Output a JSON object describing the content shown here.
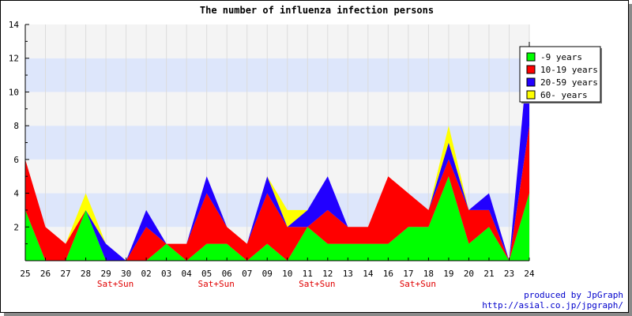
{
  "chart_data": {
    "type": "area",
    "stacked": true,
    "title": "The number of influenza infection persons",
    "categories": [
      "25",
      "26",
      "27",
      "28",
      "29",
      "30",
      "02",
      "03",
      "04",
      "05",
      "06",
      "07",
      "09",
      "10",
      "11",
      "12",
      "13",
      "14",
      "16",
      "17",
      "18",
      "19",
      "20",
      "21",
      "23",
      "24"
    ],
    "weekend_marks": [
      {
        "category": "29",
        "label": "Sat+Sun"
      },
      {
        "category": "05",
        "label": "Sat+Sun"
      },
      {
        "category": "11",
        "label": "Sat+Sun"
      },
      {
        "category": "17",
        "label": "Sat+Sun"
      }
    ],
    "ylim": [
      0,
      14
    ],
    "yticks": [
      2,
      4,
      6,
      8,
      10,
      12,
      14
    ],
    "series": [
      {
        "name": "-9 years",
        "color": "#00ff00",
        "values": [
          3,
          0,
          0,
          3,
          0,
          0,
          0,
          1,
          0,
          1,
          1,
          0,
          1,
          0,
          2,
          1,
          1,
          1,
          1,
          2,
          2,
          5,
          1,
          2,
          0,
          4
        ]
      },
      {
        "name": "10-19 years",
        "color": "#ff0000",
        "values": [
          3,
          2,
          1,
          0,
          0,
          0,
          2,
          0,
          1,
          3,
          1,
          1,
          3,
          2,
          0,
          2,
          1,
          1,
          4,
          2,
          1,
          1,
          2,
          1,
          0,
          4
        ]
      },
      {
        "name": "20-59 years",
        "color": "#2200ff",
        "values": [
          0,
          0,
          0,
          0,
          1,
          0,
          1,
          0,
          0,
          1,
          0,
          0,
          1,
          0,
          1,
          2,
          0,
          0,
          0,
          0,
          0,
          1,
          0,
          1,
          0,
          5
        ]
      },
      {
        "name": "60- years",
        "color": "#ffff00",
        "values": [
          0,
          0,
          0,
          1,
          0,
          0,
          0,
          0,
          0,
          0,
          0,
          0,
          0,
          1,
          0,
          0,
          0,
          0,
          0,
          0,
          0,
          1,
          0,
          0,
          0,
          0
        ]
      }
    ],
    "legend_position": "top-right",
    "grid": true
  },
  "credits": {
    "line1": "produced by JpGraph",
    "line2": "http://asial.co.jp/jpgraph/"
  }
}
